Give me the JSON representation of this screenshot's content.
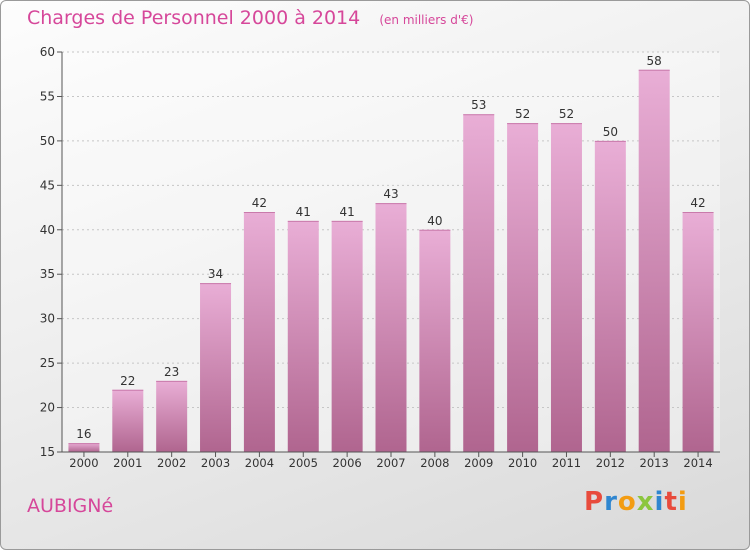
{
  "colors": {
    "accent": "#d6479a",
    "bar_top": "#e9aed6",
    "bar_bottom": "#b0658f",
    "brand": [
      "#e84b3c",
      "#2f86d0",
      "#f39c12",
      "#8cc63f",
      "#2f86d0",
      "#e84b3c",
      "#f39c12"
    ]
  },
  "commune": "AUBIGNé",
  "brand_text": "Proxiti",
  "chart_data": {
    "type": "bar",
    "title": "Charges de Personnel 2000 à 2014",
    "subtitle": "(en milliers d'€)",
    "categories": [
      "2000",
      "2001",
      "2002",
      "2003",
      "2004",
      "2005",
      "2006",
      "2007",
      "2008",
      "2009",
      "2010",
      "2011",
      "2012",
      "2013",
      "2014"
    ],
    "values": [
      16,
      22,
      23,
      34,
      42,
      41,
      41,
      43,
      40,
      53,
      52,
      52,
      50,
      58,
      42
    ],
    "data_labels": [
      "16",
      "22",
      "23",
      "34",
      "42",
      "41",
      "41",
      "43",
      "40",
      "53",
      "52",
      "52",
      "50",
      "58",
      "42"
    ],
    "ylim": [
      15,
      60
    ],
    "yticks": [
      "15",
      "20",
      "25",
      "30",
      "35",
      "40",
      "45",
      "50",
      "55",
      "60"
    ],
    "grid": true,
    "legend": "none"
  }
}
